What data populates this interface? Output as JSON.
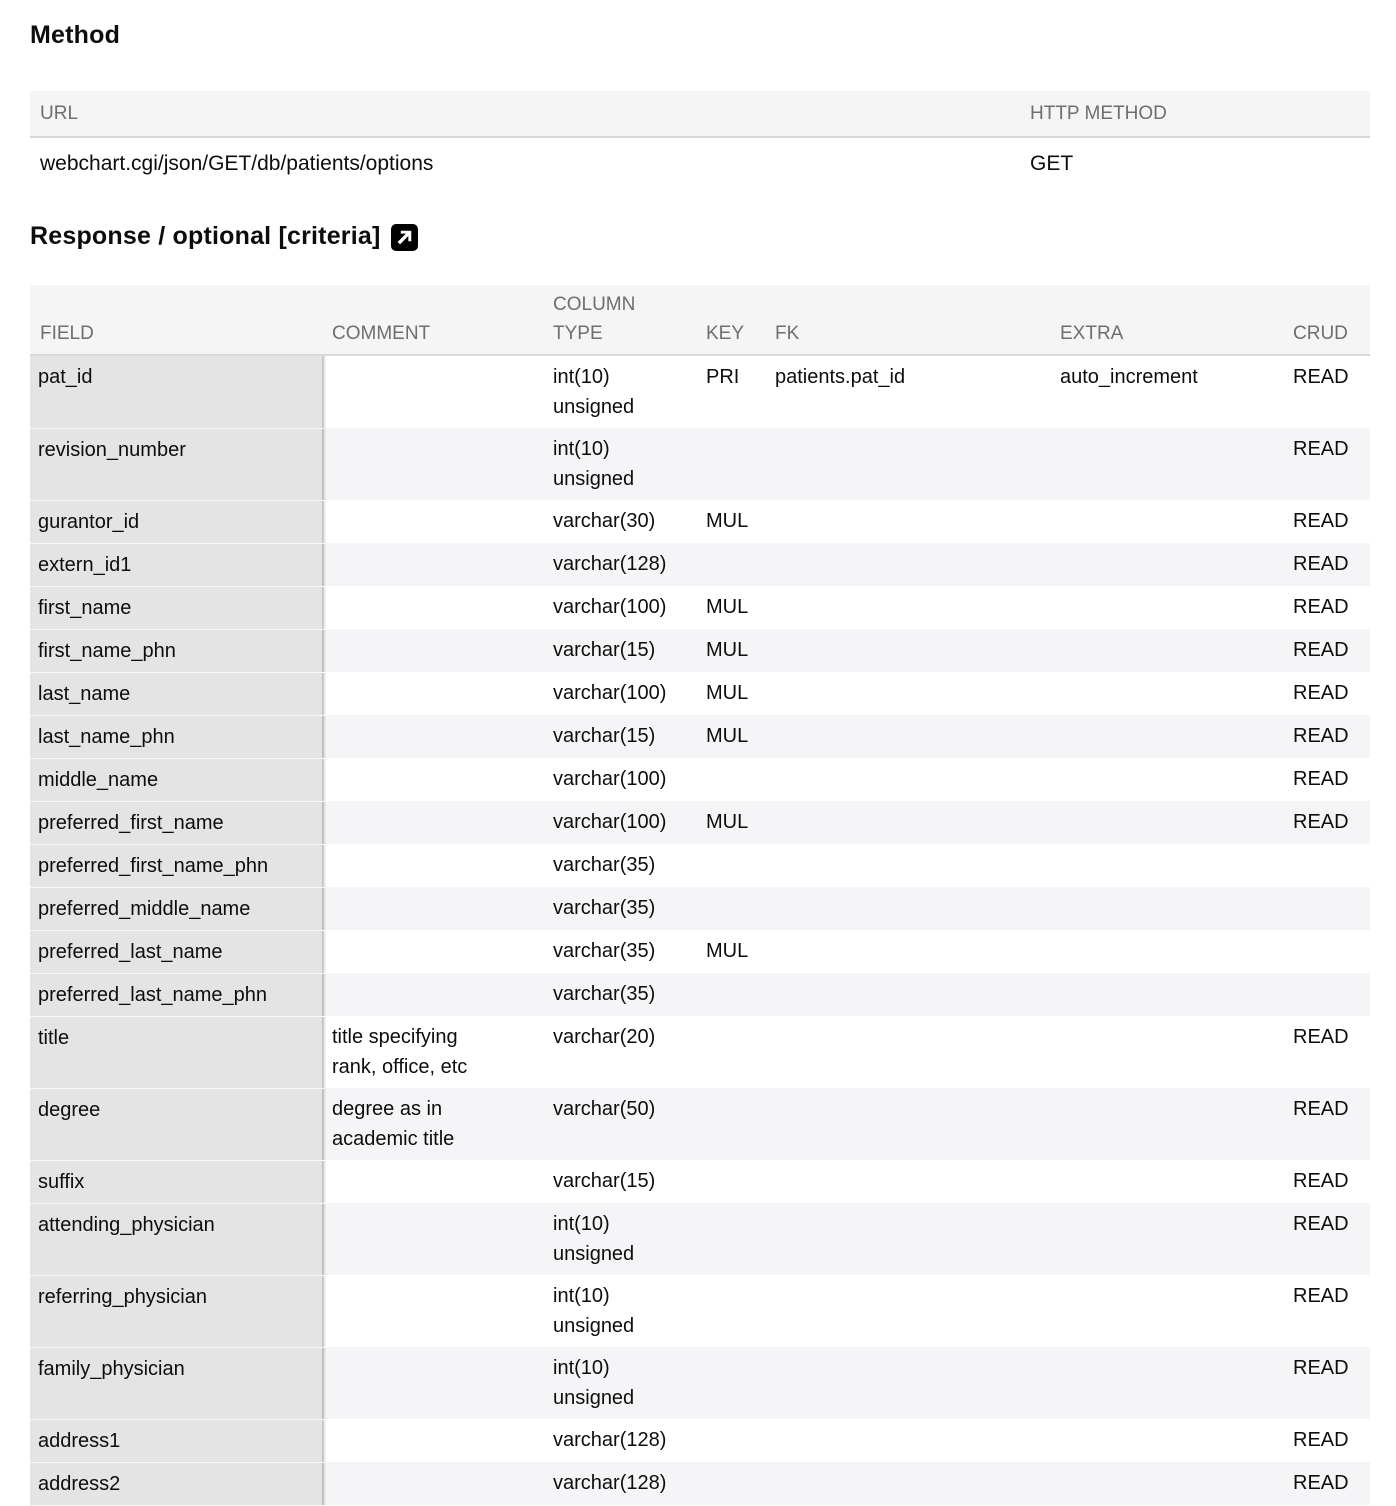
{
  "method_section": {
    "title": "Method",
    "table": {
      "headers": {
        "url": "URL",
        "http_method": "HTTP METHOD"
      },
      "row": {
        "url": "webchart.cgi/json/GET/db/patients/options",
        "http_method": "GET"
      }
    }
  },
  "response_section": {
    "title": "Response / optional [criteria]",
    "link_icon": "external-link-icon",
    "table": {
      "headers": [
        "FIELD",
        "COMMENT",
        "COLUMN TYPE",
        "KEY",
        "FK",
        "EXTRA",
        "CRUD"
      ],
      "columns": [
        "field",
        "comment",
        "column_type",
        "key",
        "fk",
        "extra",
        "crud"
      ],
      "rows": [
        {
          "field": "pat_id",
          "comment": "",
          "column_type": "int(10) unsigned",
          "key": "PRI",
          "fk": "patients.pat_id",
          "extra": "auto_increment",
          "crud": "READ"
        },
        {
          "field": "revision_number",
          "comment": "",
          "column_type": "int(10) unsigned",
          "key": "",
          "fk": "",
          "extra": "",
          "crud": "READ"
        },
        {
          "field": "gurantor_id",
          "comment": "",
          "column_type": "varchar(30)",
          "key": "MUL",
          "fk": "",
          "extra": "",
          "crud": "READ"
        },
        {
          "field": "extern_id1",
          "comment": "",
          "column_type": "varchar(128)",
          "key": "",
          "fk": "",
          "extra": "",
          "crud": "READ"
        },
        {
          "field": "first_name",
          "comment": "",
          "column_type": "varchar(100)",
          "key": "MUL",
          "fk": "",
          "extra": "",
          "crud": "READ"
        },
        {
          "field": "first_name_phn",
          "comment": "",
          "column_type": "varchar(15)",
          "key": "MUL",
          "fk": "",
          "extra": "",
          "crud": "READ"
        },
        {
          "field": "last_name",
          "comment": "",
          "column_type": "varchar(100)",
          "key": "MUL",
          "fk": "",
          "extra": "",
          "crud": "READ"
        },
        {
          "field": "last_name_phn",
          "comment": "",
          "column_type": "varchar(15)",
          "key": "MUL",
          "fk": "",
          "extra": "",
          "crud": "READ"
        },
        {
          "field": "middle_name",
          "comment": "",
          "column_type": "varchar(100)",
          "key": "",
          "fk": "",
          "extra": "",
          "crud": "READ"
        },
        {
          "field": "preferred_first_name",
          "comment": "",
          "column_type": "varchar(100)",
          "key": "MUL",
          "fk": "",
          "extra": "",
          "crud": "READ"
        },
        {
          "field": "preferred_first_name_phn",
          "comment": "",
          "column_type": "varchar(35)",
          "key": "",
          "fk": "",
          "extra": "",
          "crud": ""
        },
        {
          "field": "preferred_middle_name",
          "comment": "",
          "column_type": "varchar(35)",
          "key": "",
          "fk": "",
          "extra": "",
          "crud": ""
        },
        {
          "field": "preferred_last_name",
          "comment": "",
          "column_type": "varchar(35)",
          "key": "MUL",
          "fk": "",
          "extra": "",
          "crud": ""
        },
        {
          "field": "preferred_last_name_phn",
          "comment": "",
          "column_type": "varchar(35)",
          "key": "",
          "fk": "",
          "extra": "",
          "crud": ""
        },
        {
          "field": "title",
          "comment": "title specifying rank, office, etc",
          "column_type": "varchar(20)",
          "key": "",
          "fk": "",
          "extra": "",
          "crud": "READ"
        },
        {
          "field": "degree",
          "comment": "degree as in academic title",
          "column_type": "varchar(50)",
          "key": "",
          "fk": "",
          "extra": "",
          "crud": "READ"
        },
        {
          "field": "suffix",
          "comment": "",
          "column_type": "varchar(15)",
          "key": "",
          "fk": "",
          "extra": "",
          "crud": "READ"
        },
        {
          "field": "attending_physician",
          "comment": "",
          "column_type": "int(10) unsigned",
          "key": "",
          "fk": "",
          "extra": "",
          "crud": "READ"
        },
        {
          "field": "referring_physician",
          "comment": "",
          "column_type": "int(10) unsigned",
          "key": "",
          "fk": "",
          "extra": "",
          "crud": "READ"
        },
        {
          "field": "family_physician",
          "comment": "",
          "column_type": "int(10) unsigned",
          "key": "",
          "fk": "",
          "extra": "",
          "crud": "READ"
        },
        {
          "field": "address1",
          "comment": "",
          "column_type": "varchar(128)",
          "key": "",
          "fk": "",
          "extra": "",
          "crud": "READ"
        },
        {
          "field": "address2",
          "comment": "",
          "column_type": "varchar(128)",
          "key": "",
          "fk": "",
          "extra": "",
          "crud": "READ"
        }
      ]
    }
  },
  "colors": {
    "header_bg": "#f5f5f6",
    "header_text": "#6e6e6e",
    "stripe_bg": "#f5f5f7",
    "field_column_bg": "#e4e4e4",
    "header_border": "#d8d8d9",
    "icon_bg": "#000000"
  }
}
